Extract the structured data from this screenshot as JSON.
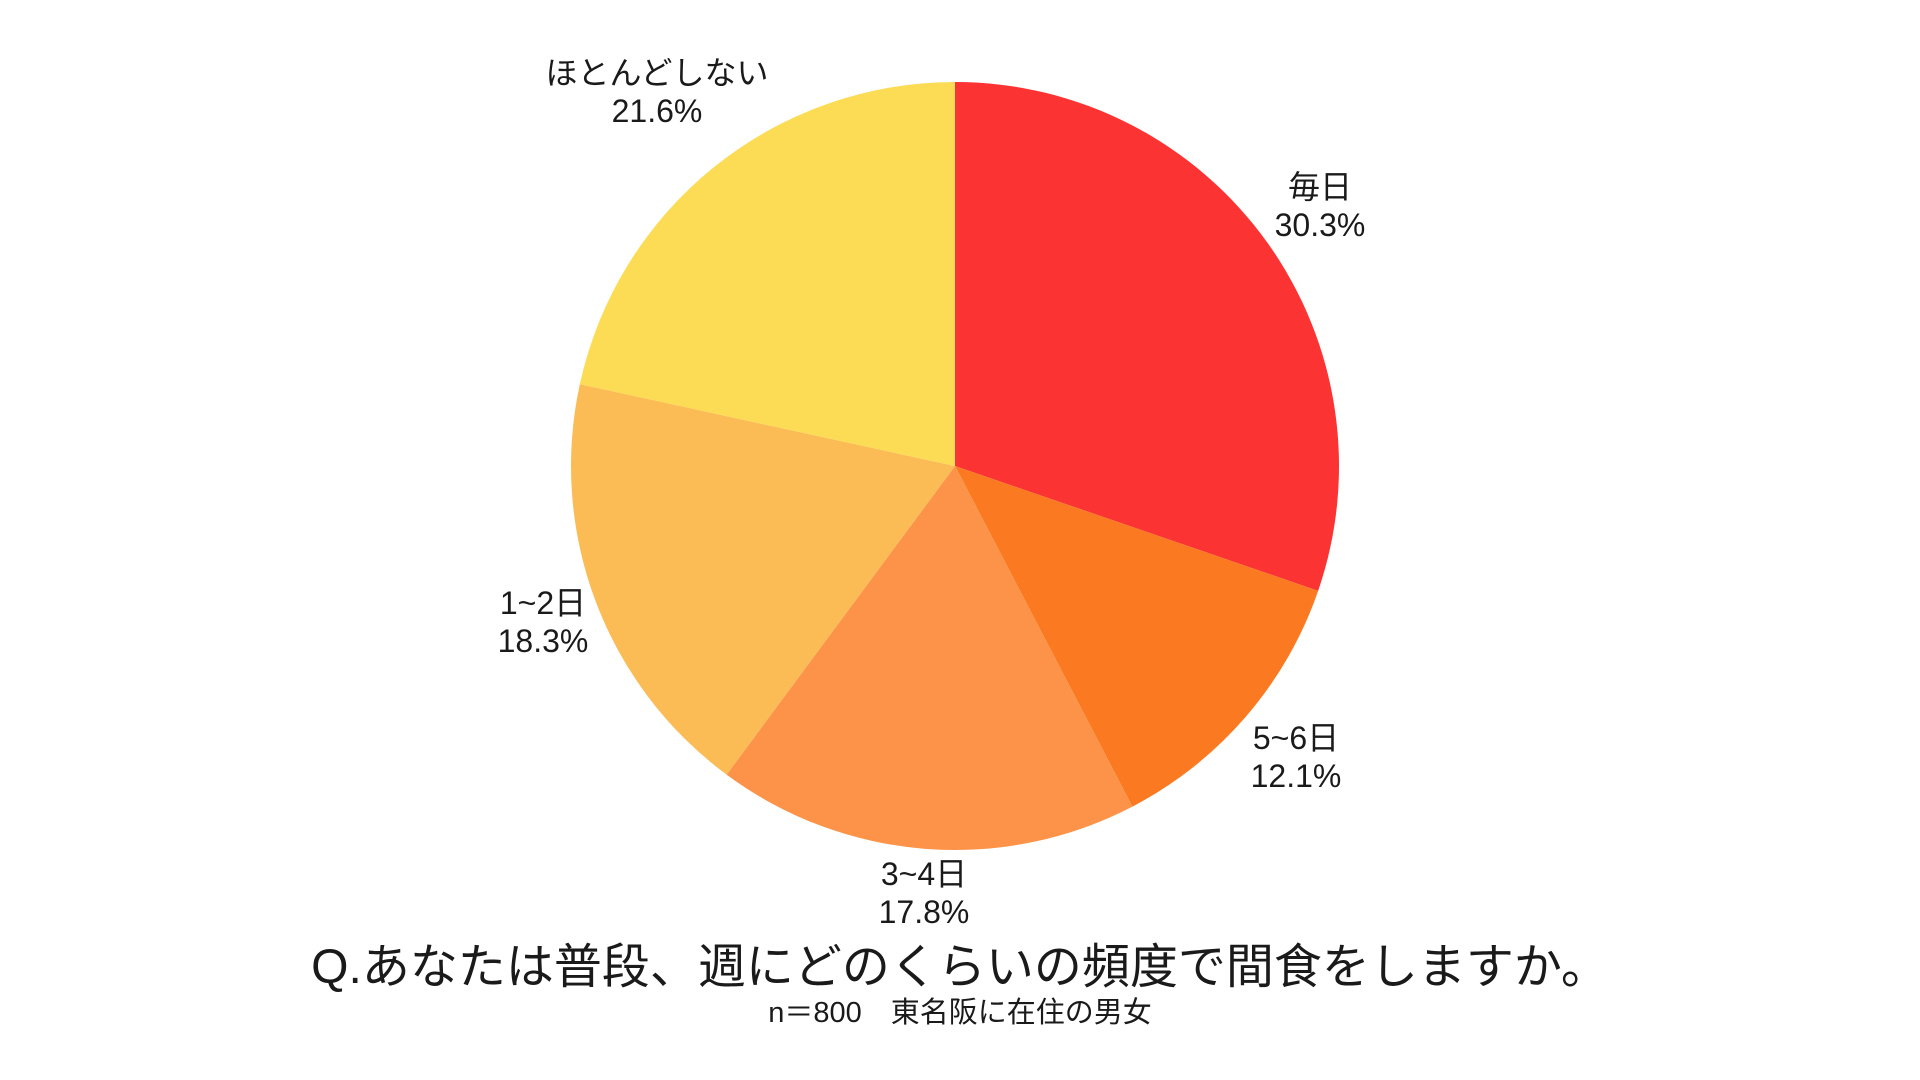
{
  "background": "#ffffff",
  "text_color": "#1a1a1a",
  "chart_data": {
    "type": "pie",
    "title": "Q.あなたは普段、週にどのくらいの頻度で間食をしますか。",
    "subtitle": "n＝800　東名阪に在住の男女",
    "unit": "%",
    "start_angle_deg": 0,
    "direction": "clockwise",
    "labels_position": "outside",
    "legend": "none",
    "slices": [
      {
        "label": "毎日",
        "value": 30.3,
        "display": "30.3%",
        "color": "#FB3333"
      },
      {
        "label": "5~6日",
        "value": 12.1,
        "display": "12.1%",
        "color": "#FB7A21"
      },
      {
        "label": "3~4日",
        "value": 17.8,
        "display": "17.8%",
        "color": "#FC9348"
      },
      {
        "label": "1~2日",
        "value": 18.3,
        "display": "18.3%",
        "color": "#FCBC55"
      },
      {
        "label": "ほとんどしない",
        "value": 21.6,
        "display": "21.6%",
        "color": "#FCDC55"
      }
    ]
  }
}
